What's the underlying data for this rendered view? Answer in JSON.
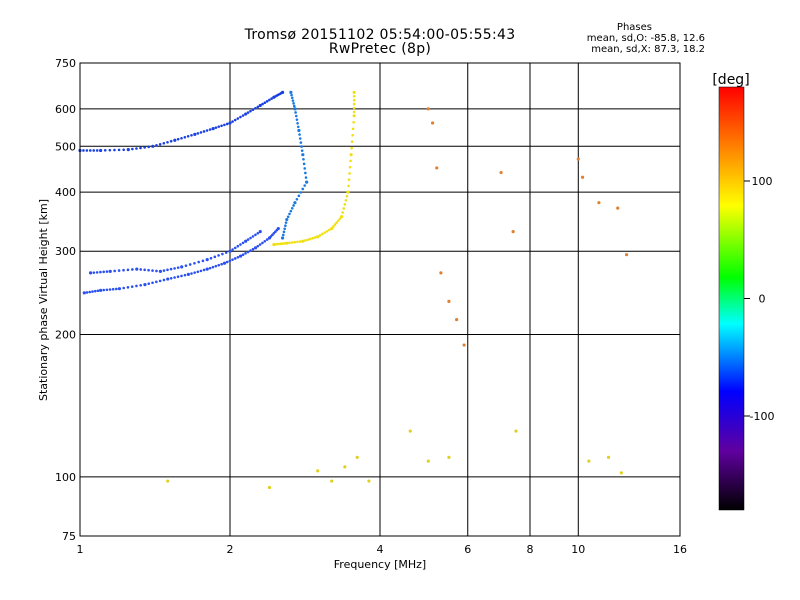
{
  "chart_data": {
    "type": "scatter",
    "title": "Tromsø 20151102 05:54:00-05:55:43",
    "subtitle": "RwPretec (8p)",
    "stats": {
      "header": "Phases",
      "line1": "mean, sd,O: -85.8, 12.6",
      "line2": "mean, sd,X:  87.3, 18.2"
    },
    "xlabel": "Frequency [MHz]",
    "ylabel": "Stationary phase Virtual Height [km]",
    "x_scale": "log2",
    "y_scale": "log",
    "xlim": [
      1,
      16
    ],
    "ylim": [
      75,
      750
    ],
    "x_ticks": [
      1,
      2,
      4,
      6,
      8,
      10,
      16
    ],
    "y_ticks": [
      75,
      100,
      200,
      300,
      400,
      500,
      600,
      750
    ],
    "grid": true,
    "colorbar": {
      "label": "[deg]",
      "range": [
        -180,
        180
      ],
      "ticks": [
        100,
        0,
        -100
      ],
      "colors": [
        "#ff0000",
        "#ff8000",
        "#ffff00",
        "#00ff00",
        "#00ffff",
        "#0000ff",
        "#6000a0",
        "#000000"
      ]
    },
    "series": [
      {
        "trace": "lower-O-branch",
        "color": "#2a50f0",
        "x": [
          1.02,
          1.1,
          1.2,
          1.35,
          1.5,
          1.65,
          1.8,
          1.95,
          2.1,
          2.25,
          2.4,
          2.5
        ],
        "y": [
          245,
          248,
          250,
          255,
          262,
          268,
          275,
          283,
          293,
          305,
          320,
          335
        ]
      },
      {
        "trace": "lower-O-branch-2",
        "color": "#2a50f0",
        "x": [
          1.05,
          1.15,
          1.3,
          1.45,
          1.6,
          1.8,
          2.0,
          2.15,
          2.3
        ],
        "y": [
          270,
          272,
          275,
          272,
          278,
          288,
          300,
          315,
          330
        ]
      },
      {
        "trace": "upper-branch",
        "color": "#1a40e0",
        "x": [
          1.0,
          1.1,
          1.25,
          1.4,
          1.55,
          1.7,
          1.85,
          2.0,
          2.15,
          2.3,
          2.45,
          2.55
        ],
        "y": [
          490,
          490,
          492,
          500,
          515,
          530,
          545,
          560,
          585,
          610,
          635,
          650
        ]
      },
      {
        "trace": "O-cusp",
        "color": "#1a7ae0",
        "x": [
          2.65,
          2.7,
          2.75,
          2.8,
          2.85,
          2.7,
          2.6,
          2.55
        ],
        "y": [
          650,
          600,
          540,
          480,
          420,
          380,
          350,
          320
        ]
      },
      {
        "trace": "X-trace",
        "color": "#f0e010",
        "x": [
          2.45,
          2.6,
          2.8,
          3.0,
          3.2,
          3.35,
          3.45,
          3.5,
          3.55,
          3.55
        ],
        "y": [
          310,
          312,
          315,
          322,
          335,
          355,
          400,
          480,
          580,
          650
        ]
      },
      {
        "trace": "scatter-high",
        "color": "#e08030",
        "x": [
          5.0,
          5.1,
          5.2,
          5.3,
          5.5,
          5.7,
          5.9,
          7.0,
          7.4,
          10.0,
          10.2,
          11.0,
          12.0,
          12.5
        ],
        "y": [
          600,
          560,
          450,
          270,
          235,
          215,
          190,
          440,
          330,
          470,
          430,
          380,
          370,
          295
        ]
      },
      {
        "trace": "scatter-low",
        "color": "#e0d020",
        "x": [
          1.5,
          2.4,
          3.0,
          3.2,
          3.4,
          3.6,
          3.8,
          4.6,
          5.0,
          5.5,
          7.5,
          10.5,
          11.5,
          12.2
        ],
        "y": [
          98,
          95,
          103,
          98,
          105,
          110,
          98,
          125,
          108,
          110,
          125,
          108,
          110,
          102
        ]
      }
    ]
  }
}
